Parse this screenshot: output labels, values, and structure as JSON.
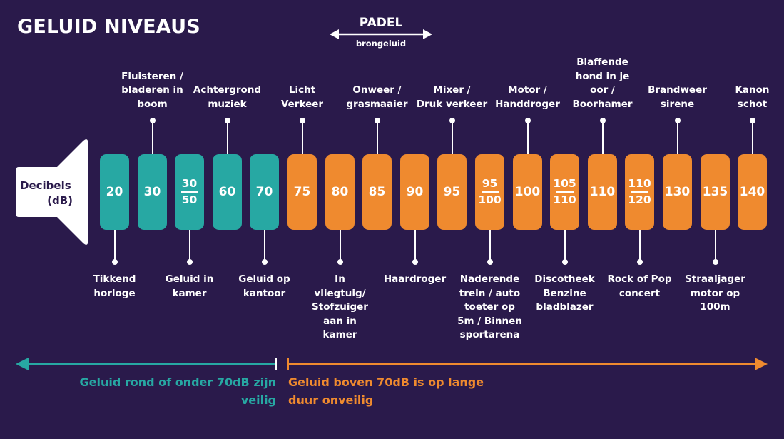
{
  "title": "GELUID NIVEAUS",
  "padel": {
    "title": "PADEL",
    "subtitle": "brongeluid"
  },
  "speaker": {
    "line1": "Decibels",
    "line2": "(dB)"
  },
  "colors": {
    "background": "#2a1a4b",
    "safe": "#27a8a3",
    "unsafe": "#ef8a2f",
    "text": "#ffffff"
  },
  "levels": [
    {
      "value": "20",
      "color": "safe",
      "top_label": "",
      "bottom_label": "Tikkend\nhorloge"
    },
    {
      "value": "30",
      "color": "safe",
      "top_label": "Fluisteren /\nbladeren in\nboom",
      "bottom_label": ""
    },
    {
      "value_top": "30",
      "value_bottom": "50",
      "color": "safe",
      "top_label": "",
      "bottom_label": "Geluid in\nkamer"
    },
    {
      "value": "60",
      "color": "safe",
      "top_label": "Achtergrond\nmuziek",
      "bottom_label": ""
    },
    {
      "value": "70",
      "color": "safe",
      "top_label": "",
      "bottom_label": "Geluid op\nkantoor"
    },
    {
      "value": "75",
      "color": "unsafe",
      "top_label": "Licht\nVerkeer",
      "bottom_label": ""
    },
    {
      "value": "80",
      "color": "unsafe",
      "top_label": "",
      "bottom_label": "In\nvliegtuig/\nStofzuiger\naan in\nkamer"
    },
    {
      "value": "85",
      "color": "unsafe",
      "top_label": "Onweer /\ngrasmaaier",
      "bottom_label": ""
    },
    {
      "value": "90",
      "color": "unsafe",
      "top_label": "",
      "bottom_label": "Haardroger"
    },
    {
      "value": "95",
      "color": "unsafe",
      "top_label": "Mixer /\nDruk verkeer",
      "bottom_label": ""
    },
    {
      "value_top": "95",
      "value_bottom": "100",
      "color": "unsafe",
      "top_label": "",
      "bottom_label": "Naderende\ntrein / auto\ntoeter op\n5m / Binnen\nsportarena"
    },
    {
      "value": "100",
      "color": "unsafe",
      "top_label": "Motor /\nHanddroger",
      "bottom_label": ""
    },
    {
      "value_top": "105",
      "value_bottom": "110",
      "color": "unsafe",
      "top_label": "",
      "bottom_label": "Discotheek\nBenzine\nbladblazer"
    },
    {
      "value": "110",
      "color": "unsafe",
      "top_label": "Blaffende\nhond in je\noor /\nBoorhamer",
      "bottom_label": ""
    },
    {
      "value_top": "110",
      "value_bottom": "120",
      "color": "unsafe",
      "top_label": "",
      "bottom_label": "Rock of Pop\nconcert"
    },
    {
      "value": "130",
      "color": "unsafe",
      "top_label": "Brandweer\nsirene",
      "bottom_label": ""
    },
    {
      "value": "135",
      "color": "unsafe",
      "top_label": "",
      "bottom_label": "Straaljager\nmotor op\n100m"
    },
    {
      "value": "140",
      "color": "unsafe",
      "top_label": "Kanon\nschot",
      "bottom_label": ""
    }
  ],
  "footer": {
    "safe": "Geluid rond of onder 70dB zijn\nveilig",
    "unsafe": "Geluid boven 70dB is op lange\nduur onveilig"
  }
}
